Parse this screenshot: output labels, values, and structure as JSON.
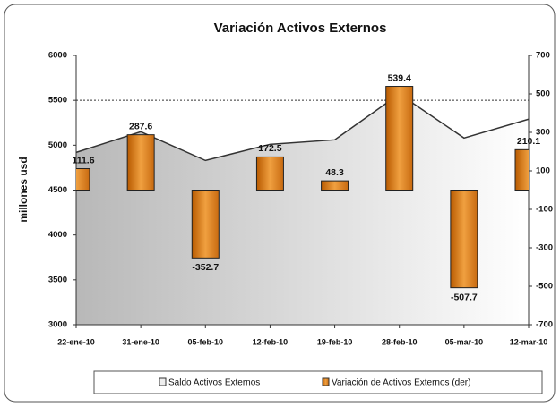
{
  "chart_data": {
    "type": "combo",
    "title": "Variación Activos Externos",
    "ylabel": "millones usd",
    "categories": [
      "22-ene-10",
      "31-ene-10",
      "05-feb-10",
      "12-feb-10",
      "19-feb-10",
      "28-feb-10",
      "05-mar-10",
      "12-mar-10"
    ],
    "series": [
      {
        "name": "Saldo Activos Externos",
        "kind": "area",
        "color": "#333333",
        "values": [
          4920,
          5150,
          4830,
          5010,
          5060,
          5570,
          5080,
          5290
        ]
      },
      {
        "name": "Variación de Activos Externos (der)",
        "kind": "bar",
        "axis": "y2",
        "color": "#e07a10",
        "values": [
          111.6,
          287.6,
          -352.7,
          172.5,
          48.3,
          539.4,
          -507.7,
          210.1
        ]
      }
    ],
    "ylim": [
      3000,
      6000
    ],
    "yticks": [
      3000,
      3500,
      4000,
      4500,
      5000,
      5500,
      6000
    ],
    "y2lim": [
      -700,
      700
    ],
    "y2ticks": [
      -700,
      -500,
      -300,
      -100,
      100,
      300,
      500,
      700
    ],
    "legend": "bottom"
  }
}
